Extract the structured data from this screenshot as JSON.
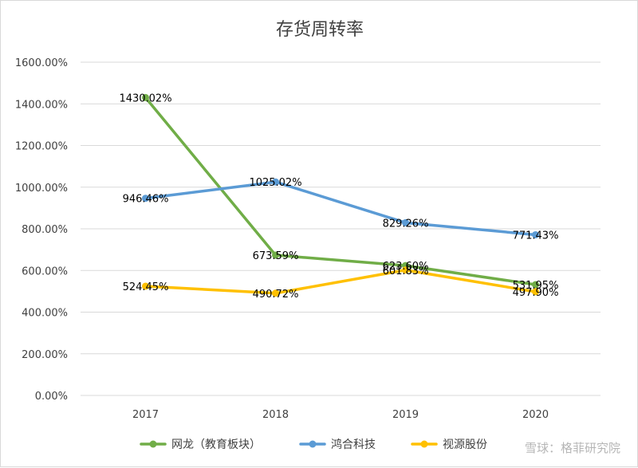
{
  "chart_data": {
    "type": "line",
    "title": "存货周转率",
    "categories": [
      "2017",
      "2018",
      "2019",
      "2020"
    ],
    "ylim": [
      0,
      1600
    ],
    "yticks": [
      0,
      200,
      400,
      600,
      800,
      1000,
      1200,
      1400,
      1600
    ],
    "ytick_labels": [
      "0.00%",
      "200.00%",
      "400.00%",
      "600.00%",
      "800.00%",
      "1000.00%",
      "1200.00%",
      "1400.00%",
      "1600.00%"
    ],
    "grid": true,
    "legend_position": "bottom",
    "series": [
      {
        "name": "网龙（教育板块）",
        "color": "#70ad47",
        "values": [
          1430.02,
          673.59,
          623.6,
          531.95
        ],
        "labels": [
          "1430.02%",
          "673.59%",
          "623.60%",
          "531.95%"
        ]
      },
      {
        "name": "鸿合科技",
        "color": "#5b9bd5",
        "values": [
          946.46,
          1025.02,
          829.26,
          771.43
        ],
        "labels": [
          "946.46%",
          "1025.02%",
          "829.26%",
          "771.43%"
        ]
      },
      {
        "name": "视源股份",
        "color": "#ffc000",
        "values": [
          524.45,
          490.72,
          601.83,
          497.9
        ],
        "labels": [
          "524.45%",
          "490.72%",
          "601.83%",
          "497.90%"
        ]
      }
    ]
  },
  "watermark": "雪球：格菲研究院"
}
